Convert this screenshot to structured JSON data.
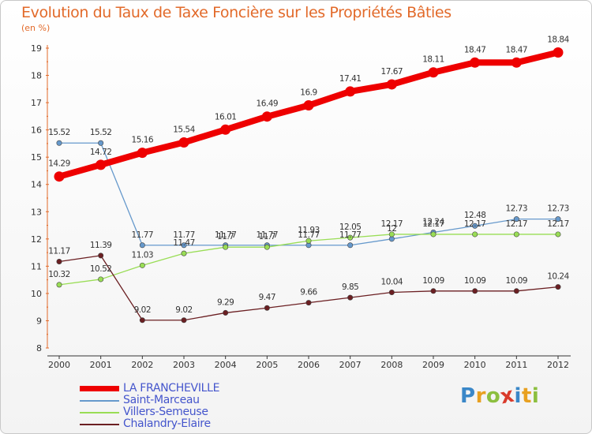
{
  "chart_data": {
    "type": "line",
    "title": "Evolution du Taux de Taxe Foncière sur les Propriétés Bâties",
    "ylabel": "(en %)",
    "xlabel": "",
    "ylim": [
      8,
      19
    ],
    "yticks": [
      "8",
      "9",
      "10",
      "11",
      "12",
      "13",
      "14",
      "15",
      "16",
      "17",
      "18",
      "19"
    ],
    "categories": [
      "2000",
      "2001",
      "2002",
      "2003",
      "2004",
      "2005",
      "2006",
      "2007",
      "2008",
      "2009",
      "2010",
      "2011",
      "2012"
    ],
    "series": [
      {
        "name": "LA FRANCHEVILLE",
        "color": "#ee0000",
        "values": [
          14.29,
          14.72,
          15.16,
          15.54,
          16.01,
          16.49,
          16.9,
          17.41,
          17.67,
          18.11,
          18.47,
          18.47,
          18.84
        ],
        "labels": [
          "14.29",
          "14.72",
          "15.16",
          "15.54",
          "16.01",
          "16.49",
          "16.9",
          "17.41",
          "17.67",
          "18.11",
          "18.47",
          "18.47",
          "18.84"
        ]
      },
      {
        "name": "Saint-Marceau",
        "color": "#6699cc",
        "values": [
          15.52,
          15.52,
          11.77,
          11.77,
          11.77,
          11.77,
          11.77,
          11.77,
          12.0,
          12.24,
          12.48,
          12.73,
          12.73
        ],
        "labels": [
          "15.52",
          "15.52",
          "11.77",
          "11.77",
          "11.77",
          "11.77",
          "11.77",
          "11.77",
          "12",
          "12.24",
          "12.48",
          "12.73",
          "12.73"
        ]
      },
      {
        "name": "Villers-Semeuse",
        "color": "#99dd55",
        "values": [
          10.32,
          10.52,
          11.03,
          11.47,
          11.7,
          11.7,
          11.93,
          12.05,
          12.17,
          12.17,
          12.17,
          12.17,
          12.17
        ],
        "labels": [
          "10.32",
          "10.52",
          "11.03",
          "11.47",
          "11.7",
          "11.7",
          "11.93",
          "12.05",
          "12.17",
          "12.17",
          "12.17",
          "12.17",
          "12.17"
        ]
      },
      {
        "name": "Chalandry-Elaire",
        "color": "#6b1f22",
        "values": [
          11.17,
          11.39,
          9.02,
          9.02,
          9.29,
          9.47,
          9.66,
          9.85,
          10.04,
          10.09,
          10.09,
          10.09,
          10.24
        ],
        "labels": [
          "11.17",
          "11.39",
          "9.02",
          "9.02",
          "9.29",
          "9.47",
          "9.66",
          "9.85",
          "10.04",
          "10.09",
          "10.09",
          "10.09",
          "10.24"
        ]
      }
    ],
    "grid": false,
    "legend_position": "bottom-left"
  },
  "legend": {
    "items": [
      {
        "label": "LA FRANCHEVILLE",
        "color": "#ee0000"
      },
      {
        "label": "Saint-Marceau",
        "color": "#6699cc"
      },
      {
        "label": "Villers-Semeuse",
        "color": "#99dd55"
      },
      {
        "label": "Chalandry-Elaire",
        "color": "#6b1f22"
      }
    ]
  },
  "brand": {
    "letters": [
      "P",
      "r",
      "o",
      "x",
      "i",
      "t",
      "i"
    ],
    "colors": [
      "#3a87c8",
      "#e8a020",
      "#8cbf3f",
      "#d93a2b",
      "#3a87c8",
      "#e8a020",
      "#8cbf3f"
    ]
  }
}
